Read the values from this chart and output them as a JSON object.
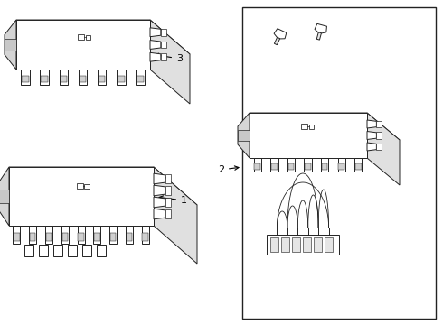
{
  "bg_color": "#ffffff",
  "lc": "#222222",
  "lw": 0.7,
  "fig_w": 4.9,
  "fig_h": 3.6,
  "dpi": 100,
  "label_fs": 8,
  "labels": [
    "1",
    "2",
    "3"
  ]
}
